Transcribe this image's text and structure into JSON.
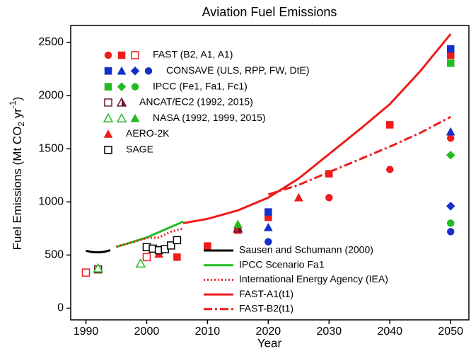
{
  "chart_data": {
    "type": "scatter-line",
    "title": "Aviation Fuel Emissions",
    "xlabel": "Year",
    "ylabel": [
      "Fuel Emissions (Mt CO",
      "2",
      " yr",
      "-1",
      ")"
    ],
    "xlim": [
      1987.5,
      2053
    ],
    "ylim": [
      -110,
      2660
    ],
    "xticks": [
      1990,
      2000,
      2010,
      2020,
      2030,
      2040,
      2050
    ],
    "yticks": [
      0,
      500,
      1000,
      1500,
      2000,
      2500
    ],
    "lines": [
      {
        "name": "Sausen and Schumann (2000)",
        "color": "#000000",
        "dash": "solid",
        "x": [
          1990,
          1991,
          1992,
          1993,
          1994
        ],
        "values": [
          540,
          528,
          525,
          530,
          545
        ]
      },
      {
        "name": "IPCC Scenario Fa1",
        "color": "#22bb22",
        "dash": "solid",
        "x": [
          1995,
          2000,
          2006
        ],
        "values": [
          575,
          665,
          815
        ]
      },
      {
        "name": "International Energy Agency (IEA)",
        "color": "#ee1c1c",
        "dash": "dotted",
        "x": [
          1995,
          1998,
          2000,
          2002,
          2004,
          2006
        ],
        "values": [
          580,
          625,
          660,
          665,
          720,
          750
        ]
      },
      {
        "name": "FAST-A1(t1)",
        "color": "#ee1c1c",
        "dash": "solid",
        "x": [
          2006,
          2010,
          2015,
          2020,
          2025,
          2030,
          2035,
          2040,
          2045,
          2050
        ],
        "values": [
          800,
          840,
          920,
          1040,
          1220,
          1450,
          1680,
          1920,
          2230,
          2580
        ]
      },
      {
        "name": "FAST-B2(t1)",
        "color": "#ee1c1c",
        "dash": "dashdot",
        "x": [
          2020,
          2025,
          2030,
          2035,
          2040,
          2045,
          2050
        ],
        "values": [
          1070,
          1160,
          1280,
          1400,
          1520,
          1650,
          1800
        ]
      }
    ],
    "marker_groups": [
      {
        "label": "FAST (B2, A1, A1)",
        "markers": [
          {
            "shape": "circle",
            "fill": "filled",
            "color": "#ee1c1c",
            "x": [
              2030,
              2040,
              2050
            ],
            "values": [
              1040,
              1305,
              1600
            ]
          },
          {
            "shape": "square",
            "fill": "filled",
            "color": "#ee1c1c",
            "x": [
              2005,
              2010,
              2015,
              2020,
              2030,
              2040,
              2050
            ],
            "values": [
              480,
              585,
              735,
              855,
              1265,
              1725,
              2380
            ]
          },
          {
            "shape": "square",
            "fill": "open",
            "color": "#ee1c1c",
            "x": [
              1990,
              2000
            ],
            "values": [
              335,
              480
            ]
          }
        ]
      },
      {
        "label": "CONSAVE (ULS, RPP, FW, DtE)",
        "markers": [
          {
            "shape": "square",
            "fill": "filled",
            "color": "#1530c8",
            "x": [
              2020,
              2050
            ],
            "values": [
              905,
              2440
            ]
          },
          {
            "shape": "triangle",
            "fill": "filled",
            "color": "#1530c8",
            "x": [
              2020,
              2050
            ],
            "values": [
              760,
              1660
            ]
          },
          {
            "shape": "diamond",
            "fill": "filled",
            "color": "#1530c8",
            "x": [
              2050
            ],
            "values": [
              960
            ]
          },
          {
            "shape": "circle",
            "fill": "filled",
            "color": "#1530c8",
            "x": [
              2020,
              2050
            ],
            "values": [
              625,
              720
            ]
          }
        ]
      },
      {
        "label": "IPCC (Fe1, Fa1, Fc1)",
        "markers": [
          {
            "shape": "square",
            "fill": "filled",
            "color": "#22bb22",
            "x": [
              2050
            ],
            "values": [
              2305
            ]
          },
          {
            "shape": "diamond",
            "fill": "filled",
            "color": "#22bb22",
            "x": [
              2050
            ],
            "values": [
              1440
            ]
          },
          {
            "shape": "circle",
            "fill": "filled",
            "color": "#22bb22",
            "x": [
              2050
            ],
            "values": [
              800
            ]
          }
        ]
      },
      {
        "label": "ANCAT/EC2 (1992, 2015)",
        "markers": [
          {
            "shape": "square",
            "fill": "open",
            "color": "#6b1a2a",
            "x": [
              1992
            ],
            "values": [
              365
            ]
          },
          {
            "shape": "triangle",
            "fill": "half",
            "color": "#6b1a2a",
            "x": [
              2015
            ],
            "values": [
              750
            ]
          }
        ]
      },
      {
        "label": "NASA (1992, 1999, 2015)",
        "markers": [
          {
            "shape": "triangle",
            "fill": "open",
            "color": "#22bb22",
            "x": [
              1992
            ],
            "values": [
              375
            ]
          },
          {
            "shape": "triangle",
            "fill": "open",
            "color": "#22bb22",
            "x": [
              1999
            ],
            "values": [
              420
            ]
          },
          {
            "shape": "triangle",
            "fill": "filled",
            "color": "#22bb22",
            "x": [
              2015
            ],
            "values": [
              790
            ]
          }
        ]
      },
      {
        "label": "AERO-2K",
        "markers": [
          {
            "shape": "triangle",
            "fill": "filled",
            "color": "#ee1c1c",
            "x": [
              2002,
              2025
            ],
            "values": [
              510,
              1040
            ]
          }
        ]
      },
      {
        "label": "SAGE",
        "markers": [
          {
            "shape": "square",
            "fill": "open",
            "color": "#000000",
            "x": [
              2000,
              2001,
              2002,
              2003,
              2004,
              2005
            ],
            "values": [
              575,
              560,
              545,
              555,
              590,
              640
            ]
          }
        ]
      }
    ]
  }
}
